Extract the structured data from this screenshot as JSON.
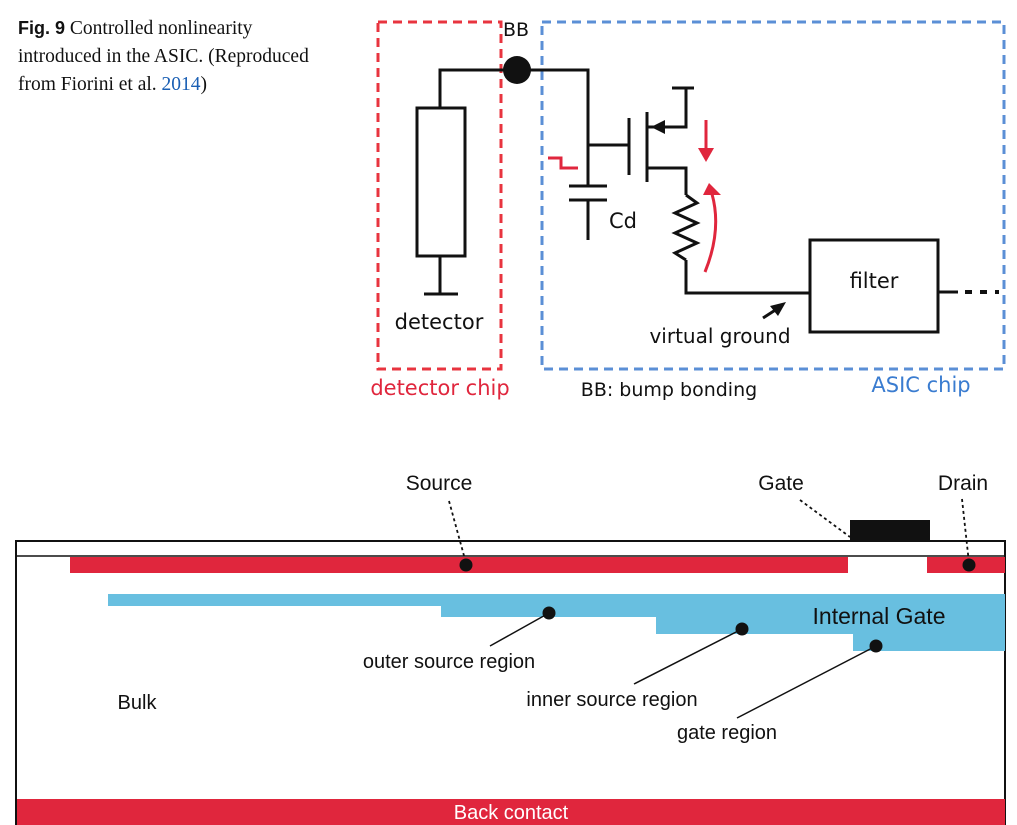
{
  "caption": {
    "label": "Fig. 9",
    "text_before": "Controlled nonlinearity introduced in the ASIC. (Reproduced from Fiorini et al.",
    "citation_year": "2014",
    "text_after": ")"
  },
  "circuit": {
    "bb_label": "BB",
    "cd_label": "Cd",
    "detector_label": "detector",
    "filter_label": "filter",
    "virtual_ground_label": "virtual ground",
    "detector_chip_label": "detector chip",
    "bump_bonding_label": "BB: bump bonding",
    "asic_chip_label": "ASIC chip"
  },
  "device": {
    "source_label": "Source",
    "gate_label": "Gate",
    "drain_label": "Drain",
    "internal_gate_label": "Internal Gate",
    "outer_source_label": "outer source region",
    "inner_source_label": "inner source region",
    "gate_region_label": "gate region",
    "bulk_label": "Bulk",
    "back_contact_label": "Back contact"
  },
  "colors": {
    "red": "#e0263d",
    "blue": "#68bfe0",
    "dashed_red": "#e8343f",
    "dashed_blue": "#5b8fd6",
    "citation": "#1a5fb4"
  }
}
